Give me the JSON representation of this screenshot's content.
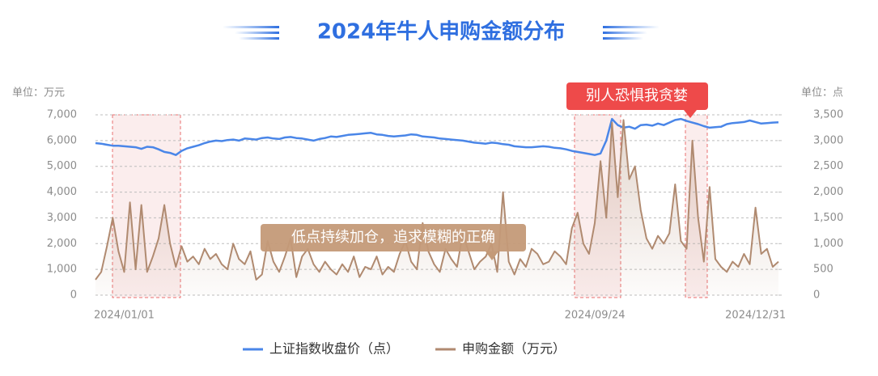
{
  "chart_data": {
    "type": "line",
    "title": "2024年牛人申购金额分布",
    "ylabel": "单位：万元",
    "y2label": "单位：点",
    "annotations": [
      "别人恐惧我贪婪",
      "低点持续加仓，追求模糊的正确"
    ],
    "categories": [
      null,
      null,
      null,
      null,
      null,
      "2024/01/01",
      null,
      null,
      null,
      null,
      null,
      null,
      null,
      null,
      null,
      null,
      null,
      null,
      null,
      null,
      null,
      null,
      null,
      null,
      null,
      null,
      null,
      null,
      null,
      null,
      null,
      null,
      null,
      null,
      null,
      null,
      null,
      null,
      null,
      null,
      null,
      null,
      null,
      null,
      null,
      null,
      null,
      null,
      null,
      null,
      null,
      null,
      null,
      null,
      null,
      null,
      null,
      null,
      null,
      null,
      null,
      null,
      null,
      null,
      null,
      null,
      null,
      null,
      null,
      null,
      null,
      null,
      null,
      null,
      null,
      null,
      null,
      null,
      null,
      null,
      null,
      null,
      null,
      null,
      null,
      null,
      null,
      "2024/09/24",
      null,
      null,
      null,
      null,
      null,
      null,
      null,
      null,
      null,
      null,
      null,
      null,
      null,
      null,
      null,
      null,
      null,
      null,
      null,
      null,
      null,
      null,
      null,
      null,
      null,
      null,
      null,
      "2024/12/31",
      null,
      null,
      null,
      null
    ],
    "series": [
      {
        "name": "上证指数收盘价（点）",
        "color": "#4a86e8",
        "axis": "y2",
        "values": [
          2950,
          2940,
          2920,
          2900,
          2900,
          2890,
          2880,
          2870,
          2840,
          2880,
          2870,
          2830,
          2780,
          2760,
          2720,
          2800,
          2850,
          2880,
          2910,
          2950,
          2980,
          3000,
          2990,
          3010,
          3020,
          3000,
          3040,
          3030,
          3020,
          3050,
          3060,
          3040,
          3030,
          3060,
          3070,
          3050,
          3040,
          3020,
          3000,
          3030,
          3050,
          3080,
          3070,
          3090,
          3110,
          3120,
          3130,
          3140,
          3150,
          3120,
          3110,
          3090,
          3080,
          3090,
          3100,
          3120,
          3110,
          3080,
          3070,
          3060,
          3040,
          3030,
          3020,
          3010,
          3000,
          2980,
          2960,
          2950,
          2940,
          2960,
          2950,
          2930,
          2920,
          2890,
          2880,
          2870,
          2870,
          2880,
          2890,
          2880,
          2860,
          2850,
          2830,
          2800,
          2780,
          2760,
          2740,
          2720,
          2750,
          3000,
          3420,
          3300,
          3250,
          3270,
          3230,
          3300,
          3310,
          3290,
          3330,
          3300,
          3350,
          3400,
          3420,
          3380,
          3350,
          3320,
          3280,
          3250,
          3260,
          3270,
          3320,
          3340,
          3350,
          3360,
          3390,
          3360,
          3330,
          3340,
          3350,
          3355
        ]
      },
      {
        "name": "申购金额（万元）",
        "color": "#b08a70",
        "values": [
          600,
          900,
          1900,
          3000,
          1700,
          900,
          3600,
          1000,
          3500,
          900,
          1500,
          2200,
          3500,
          2000,
          1100,
          1900,
          1300,
          1500,
          1200,
          1800,
          1400,
          1600,
          1200,
          1000,
          2000,
          1400,
          1200,
          1700,
          600,
          800,
          2100,
          1300,
          900,
          1500,
          2200,
          700,
          1500,
          1800,
          1200,
          900,
          1300,
          1000,
          800,
          1200,
          900,
          1500,
          700,
          1100,
          1000,
          1500,
          800,
          1100,
          900,
          1600,
          2100,
          1300,
          1000,
          2800,
          1700,
          1200,
          900,
          1800,
          1400,
          1100,
          2400,
          1700,
          1000,
          1300,
          1500,
          2000,
          900,
          4000,
          1300,
          800,
          1400,
          1100,
          1800,
          1600,
          1200,
          1300,
          1700,
          1500,
          1200,
          2600,
          3200,
          2000,
          1600,
          2800,
          5200,
          3000,
          6700,
          3800,
          6800,
          4500,
          5000,
          3300,
          2200,
          1800,
          2300,
          2000,
          2400,
          4300,
          2100,
          1800,
          6000,
          3000,
          1300,
          4200,
          1400,
          1100,
          900,
          1300,
          1100,
          1600,
          1200,
          3400,
          1600,
          1800,
          1100,
          1300
        ]
      }
    ],
    "ylim": [
      0,
      7000
    ],
    "yticks": [
      0,
      {
        "value": 1000,
        "label": "1,000"
      },
      {
        "value": 2000,
        "label": "2,000"
      },
      {
        "value": 3000,
        "label": "3,000"
      },
      {
        "value": 4000,
        "label": "4,000"
      },
      {
        "value": 5000,
        "label": "5,000"
      },
      {
        "value": 6000,
        "label": "6,000"
      },
      {
        "value": 7000,
        "label": "7,000"
      }
    ],
    "y2lim": [
      0,
      3500
    ],
    "y2ticks": [
      0,
      500,
      {
        "value": 1000,
        "label": "1,000"
      },
      {
        "value": 1500,
        "label": "1,500"
      },
      {
        "value": 2000,
        "label": "2,000"
      },
      {
        "value": 2500,
        "label": "2,500"
      },
      {
        "value": 3000,
        "label": "3,000"
      },
      {
        "value": 3500,
        "label": "3,500"
      }
    ],
    "grid": true
  }
}
